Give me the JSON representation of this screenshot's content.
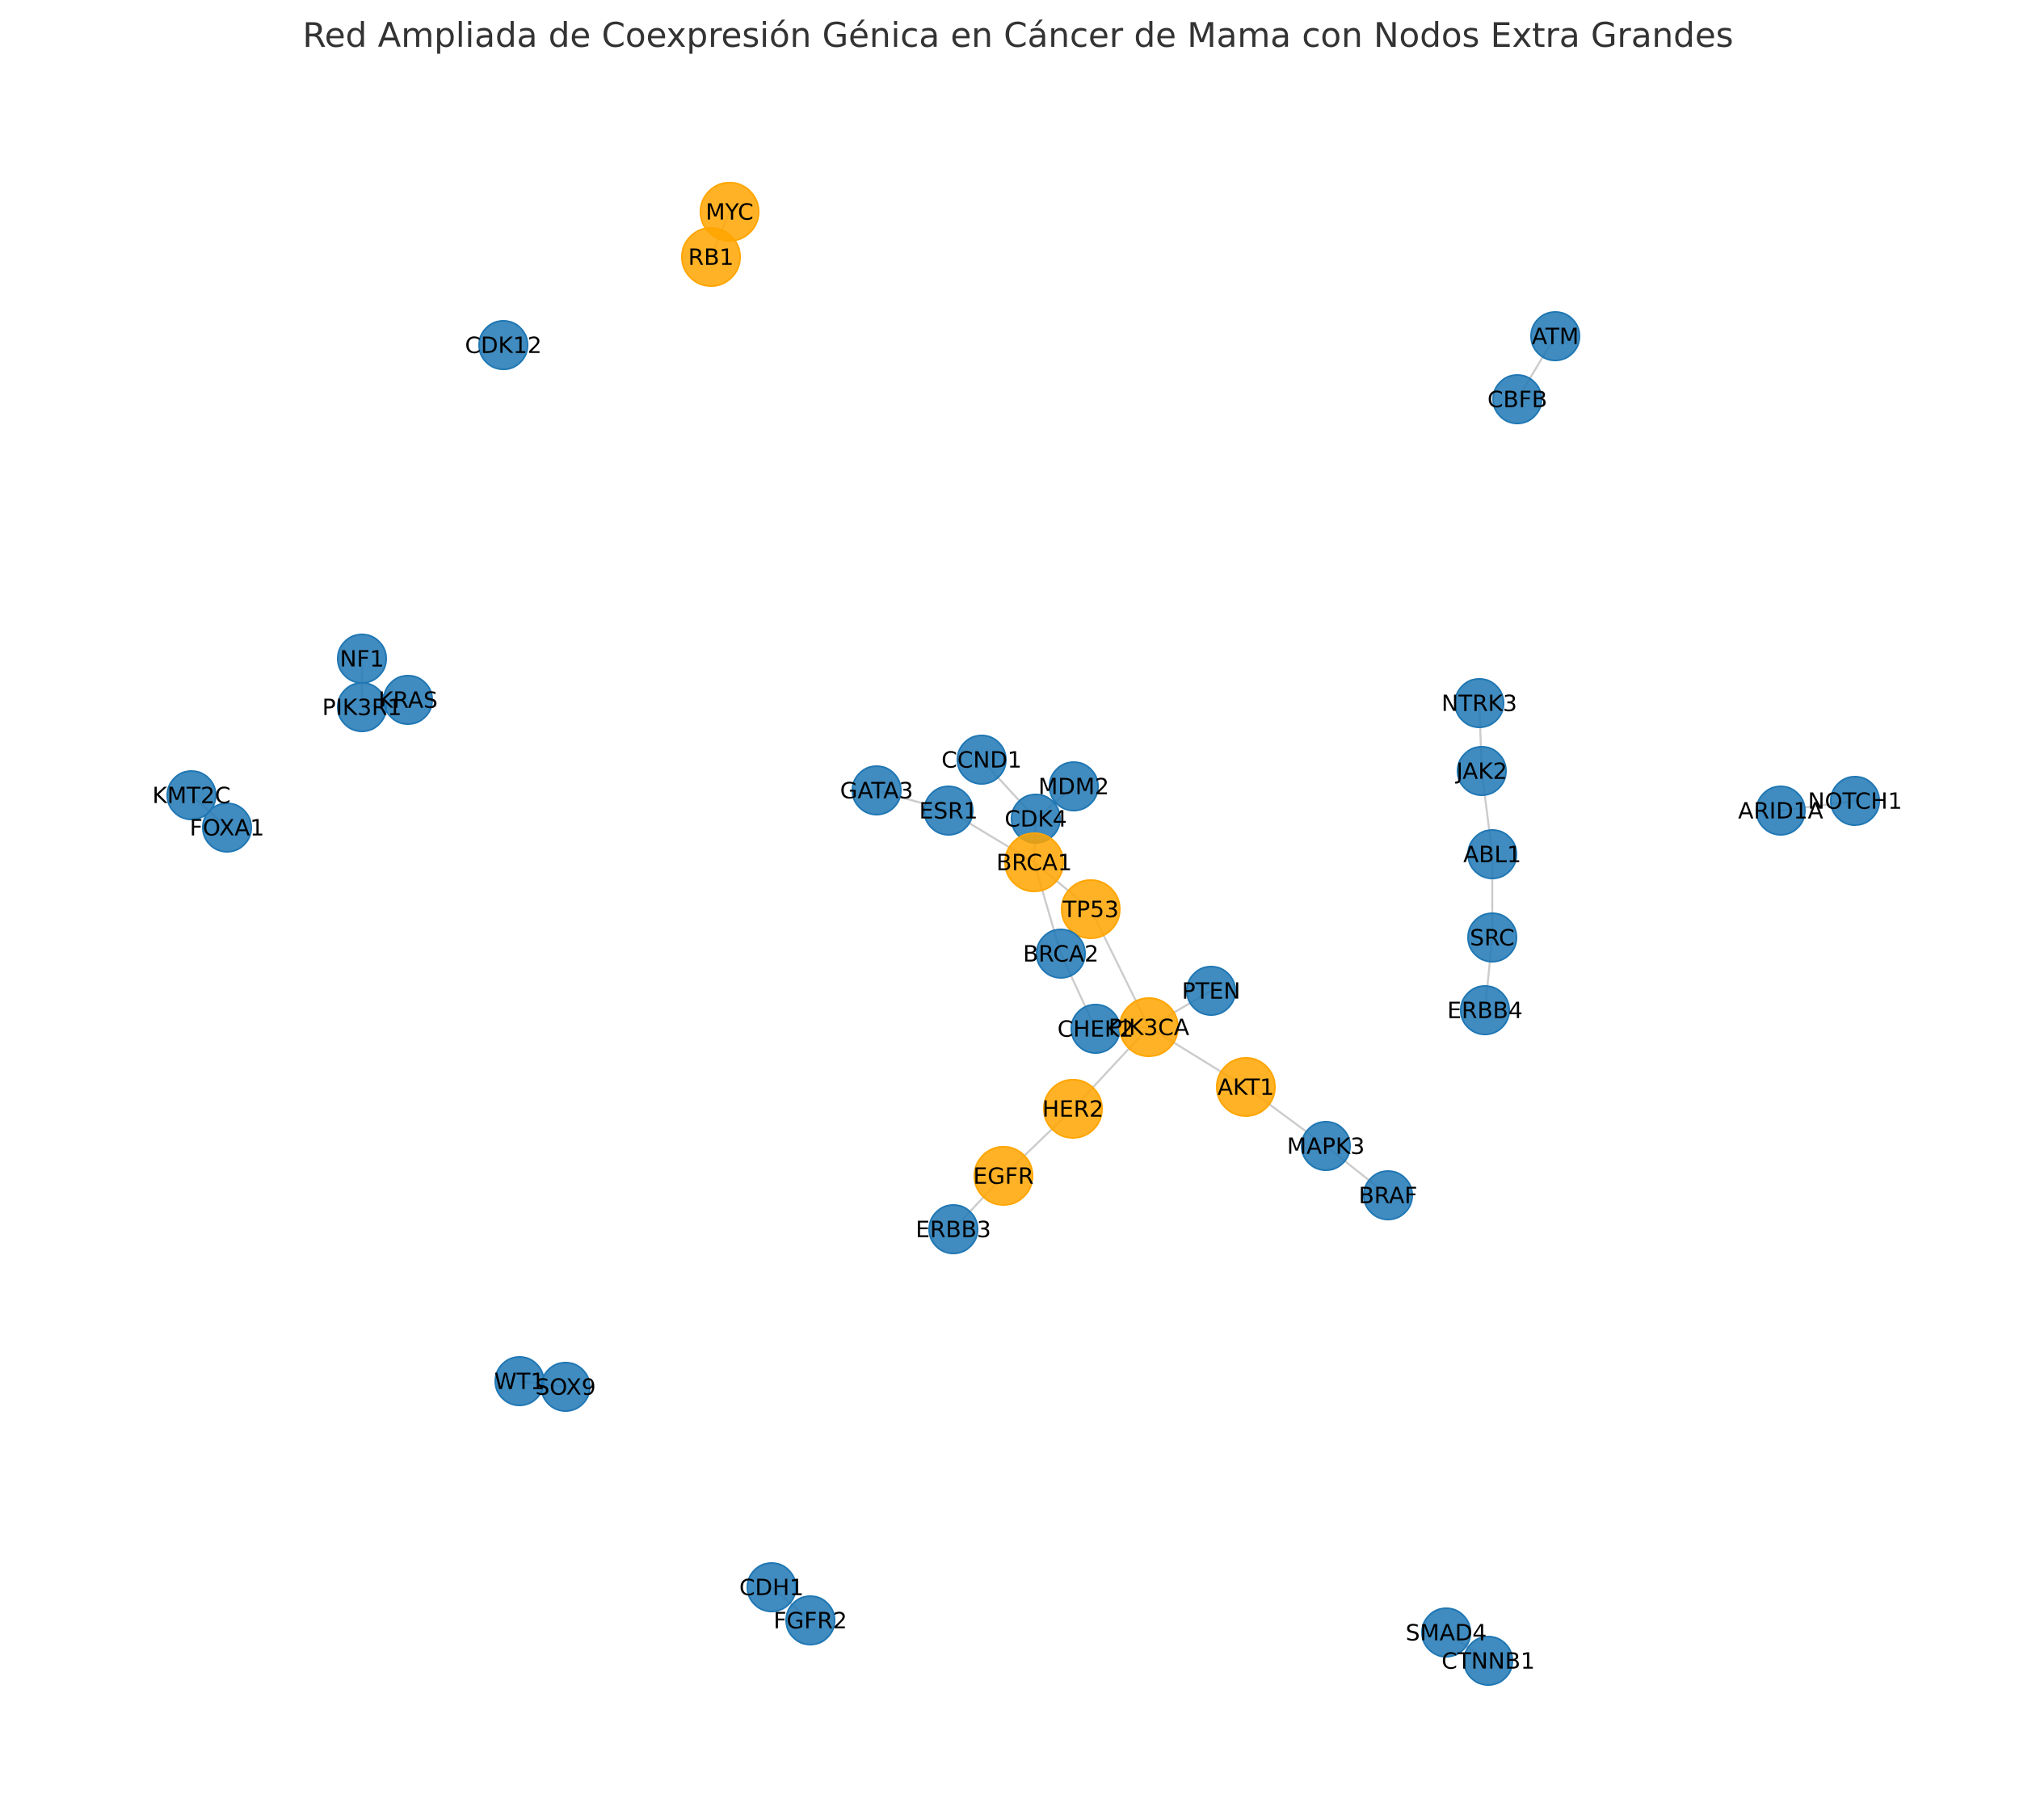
{
  "chart_data": {
    "type": "network",
    "title": "Red Ampliada de Coexpresión Génica en Cáncer de Mama con Nodos Extra Grandes",
    "colors": {
      "hub": "#FFA500",
      "regular": "#1f77b4",
      "edge": "#cccccc"
    },
    "nodes": [
      {
        "id": "MYC",
        "hub": true
      },
      {
        "id": "RB1",
        "hub": true
      },
      {
        "id": "CDK12",
        "hub": false
      },
      {
        "id": "ATM",
        "hub": false
      },
      {
        "id": "CBFB",
        "hub": false
      },
      {
        "id": "NF1",
        "hub": false
      },
      {
        "id": "PIK3R1",
        "hub": false
      },
      {
        "id": "KRAS",
        "hub": false
      },
      {
        "id": "KMT2C",
        "hub": false
      },
      {
        "id": "FOXA1",
        "hub": false
      },
      {
        "id": "NTRK3",
        "hub": false
      },
      {
        "id": "JAK2",
        "hub": false
      },
      {
        "id": "ABL1",
        "hub": false
      },
      {
        "id": "SRC",
        "hub": false
      },
      {
        "id": "ERBB4",
        "hub": false
      },
      {
        "id": "ARID1A",
        "hub": false
      },
      {
        "id": "NOTCH1",
        "hub": false
      },
      {
        "id": "GATA3",
        "hub": false
      },
      {
        "id": "CCND1",
        "hub": false
      },
      {
        "id": "ESR1",
        "hub": false
      },
      {
        "id": "MDM2",
        "hub": false
      },
      {
        "id": "CDK4",
        "hub": false
      },
      {
        "id": "BRCA1",
        "hub": true
      },
      {
        "id": "TP53",
        "hub": true
      },
      {
        "id": "BRCA2",
        "hub": false
      },
      {
        "id": "PTEN",
        "hub": false
      },
      {
        "id": "CHEK2",
        "hub": false
      },
      {
        "id": "PIK3CA",
        "hub": true
      },
      {
        "id": "AKT1",
        "hub": true
      },
      {
        "id": "HER2",
        "hub": true
      },
      {
        "id": "MAPK3",
        "hub": false
      },
      {
        "id": "EGFR",
        "hub": true
      },
      {
        "id": "BRAF",
        "hub": false
      },
      {
        "id": "ERBB3",
        "hub": false
      },
      {
        "id": "WT1",
        "hub": false
      },
      {
        "id": "SOX9",
        "hub": false
      },
      {
        "id": "CDH1",
        "hub": false
      },
      {
        "id": "FGFR2",
        "hub": false
      },
      {
        "id": "SMAD4",
        "hub": false
      },
      {
        "id": "CTNNB1",
        "hub": false
      }
    ],
    "edges": [
      [
        "MYC",
        "RB1"
      ],
      [
        "ATM",
        "CBFB"
      ],
      [
        "NF1",
        "PIK3R1"
      ],
      [
        "PIK3R1",
        "KRAS"
      ],
      [
        "KMT2C",
        "FOXA1"
      ],
      [
        "NTRK3",
        "JAK2"
      ],
      [
        "JAK2",
        "ABL1"
      ],
      [
        "ABL1",
        "SRC"
      ],
      [
        "SRC",
        "ERBB4"
      ],
      [
        "ARID1A",
        "NOTCH1"
      ],
      [
        "GATA3",
        "ESR1"
      ],
      [
        "ESR1",
        "BRCA1"
      ],
      [
        "CCND1",
        "CDK4"
      ],
      [
        "CDK4",
        "BRCA1"
      ],
      [
        "MDM2",
        "CDK4"
      ],
      [
        "BRCA1",
        "TP53"
      ],
      [
        "BRCA1",
        "BRCA2"
      ],
      [
        "TP53",
        "PIK3CA"
      ],
      [
        "BRCA2",
        "CHEK2"
      ],
      [
        "PTEN",
        "PIK3CA"
      ],
      [
        "CHEK2",
        "PIK3CA"
      ],
      [
        "PIK3CA",
        "AKT1"
      ],
      [
        "PIK3CA",
        "HER2"
      ],
      [
        "AKT1",
        "MAPK3"
      ],
      [
        "MAPK3",
        "BRAF"
      ],
      [
        "HER2",
        "EGFR"
      ],
      [
        "EGFR",
        "ERBB3"
      ],
      [
        "WT1",
        "SOX9"
      ],
      [
        "CDH1",
        "FGFR2"
      ],
      [
        "SMAD4",
        "CTNNB1"
      ]
    ]
  }
}
